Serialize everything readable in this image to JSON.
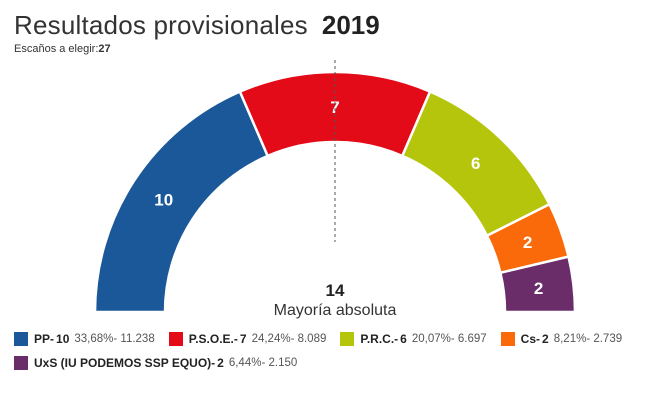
{
  "header": {
    "title": "Resultados provisionales",
    "year": "2019",
    "seats_label": "Escaños a elegir:",
    "seats_total": "27"
  },
  "center": {
    "majority_value": "14",
    "majority_label": "Mayoría absoluta"
  },
  "chart_data": {
    "type": "pie",
    "subtype": "parliament-semicircle",
    "title": "Resultados provisionales 2019",
    "total_seats": 27,
    "majority": 14,
    "series": [
      {
        "name": "PP",
        "seats": 10,
        "percent": "33,68%",
        "votes": "11.238",
        "color": "#1a5899"
      },
      {
        "name": "P.S.O.E.",
        "seats": 7,
        "percent": "24,24%",
        "votes": "8.089",
        "color": "#e30b18"
      },
      {
        "name": "P.R.C.",
        "seats": 6,
        "percent": "20,07%",
        "votes": "6.697",
        "color": "#b5c50c"
      },
      {
        "name": "Cs",
        "seats": 2,
        "percent": "8,21%",
        "votes": "2.739",
        "color": "#fa6a0a"
      },
      {
        "name": "UxS (IU PODEMOS SSP EQUO)",
        "seats": 2,
        "percent": "6,44%",
        "votes": "2.150",
        "color": "#6b2c6a"
      }
    ]
  },
  "legend": {
    "separator": "- ",
    "stat_separator": "- "
  }
}
